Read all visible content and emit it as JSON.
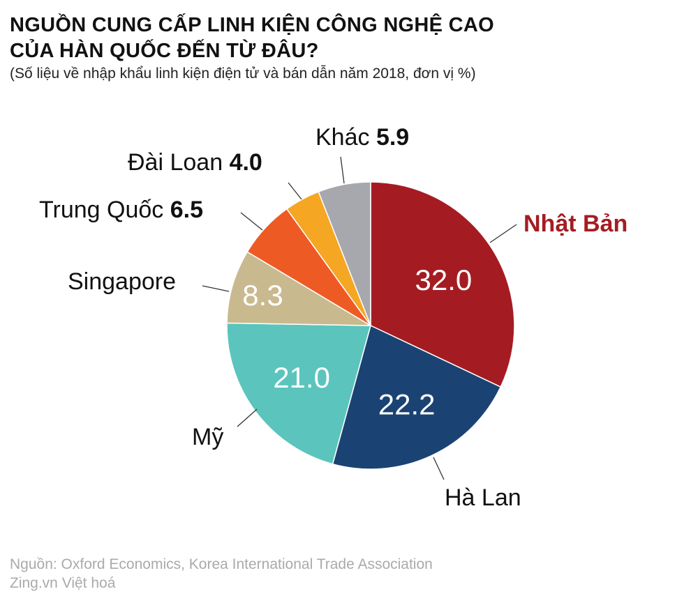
{
  "header": {
    "title_line1": "NGUỒN CUNG CẤP LINH KIỆN CÔNG NGHỆ CAO",
    "title_line2": "CỦA HÀN QUỐC ĐẾN TỪ ĐÂU?",
    "subtitle": "(Số liệu về nhập khẩu linh kiện điện tử và bán dẫn năm 2018, đơn vị %)"
  },
  "labels": {
    "japan": "Nhật Bản",
    "netherlands": "Hà Lan",
    "usa": "Mỹ",
    "singapore": "Singapore",
    "china": "Trung Quốc",
    "china_val": "6.5",
    "taiwan": "Đài Loan",
    "taiwan_val": "4.0",
    "other": "Khác",
    "other_val": "5.9",
    "japan_val": "32.0",
    "netherlands_val": "22.2",
    "usa_val": "21.0",
    "singapore_val": "8.3"
  },
  "footer": {
    "source": "Nguồn: Oxford Economics, Korea International Trade Association",
    "credit": "Zing.vn Việt hoá"
  },
  "chart_data": {
    "type": "pie",
    "title": "Nguồn cung cấp linh kiện công nghệ cao của Hàn Quốc đến từ đâu?",
    "subtitle": "Số liệu về nhập khẩu linh kiện điện tử và bán dẫn năm 2018, đơn vị %",
    "categories": [
      "Nhật Bản",
      "Hà Lan",
      "Mỹ",
      "Singapore",
      "Trung Quốc",
      "Đài Loan",
      "Khác"
    ],
    "values": [
      32.0,
      22.2,
      21.0,
      8.3,
      6.5,
      4.0,
      5.9
    ],
    "colors": [
      "#a41c22",
      "#1a4373",
      "#5bc4bd",
      "#c9b98f",
      "#ee5a24",
      "#f5a623",
      "#a7a8ad"
    ]
  }
}
